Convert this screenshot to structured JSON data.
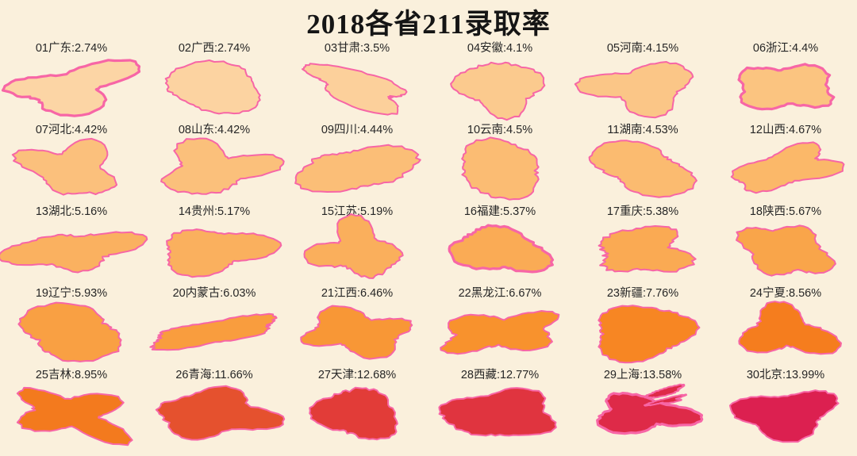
{
  "chart_data": {
    "type": "map",
    "subtype": "small-multiples-province-silhouettes",
    "title": "2018各省211录取率",
    "unit": "%",
    "grid": {
      "cols": 6,
      "rows": 5
    },
    "provinces": [
      {
        "rank": "01",
        "name": "广东",
        "rate": 2.74,
        "rate_label": "2.74%",
        "color": "#fcd5a5"
      },
      {
        "rank": "02",
        "name": "广西",
        "rate": 2.74,
        "rate_label": "2.74%",
        "color": "#fcd3a1"
      },
      {
        "rank": "03",
        "name": "甘肃",
        "rate": 3.5,
        "rate_label": "3.5%",
        "color": "#fcd09b"
      },
      {
        "rank": "04",
        "name": "安徽",
        "rate": 4.1,
        "rate_label": "4.1%",
        "color": "#fbca8e"
      },
      {
        "rank": "05",
        "name": "河南",
        "rate": 4.15,
        "rate_label": "4.15%",
        "color": "#fbc687"
      },
      {
        "rank": "06",
        "name": "浙江",
        "rate": 4.4,
        "rate_label": "4.4%",
        "color": "#fbc480"
      },
      {
        "rank": "07",
        "name": "河北",
        "rate": 4.42,
        "rate_label": "4.42%",
        "color": "#fbc07c"
      },
      {
        "rank": "08",
        "name": "山东",
        "rate": 4.42,
        "rate_label": "4.42%",
        "color": "#fbc07b"
      },
      {
        "rank": "09",
        "name": "四川",
        "rate": 4.44,
        "rate_label": "4.44%",
        "color": "#fbbe77"
      },
      {
        "rank": "10",
        "name": "云南",
        "rate": 4.5,
        "rate_label": "4.5%",
        "color": "#fbbc73"
      },
      {
        "rank": "11",
        "name": "湖南",
        "rate": 4.53,
        "rate_label": "4.53%",
        "color": "#fbbb70"
      },
      {
        "rank": "12",
        "name": "山西",
        "rate": 4.67,
        "rate_label": "4.67%",
        "color": "#fbb869"
      },
      {
        "rank": "13",
        "name": "湖北",
        "rate": 5.16,
        "rate_label": "5.16%",
        "color": "#fab160"
      },
      {
        "rank": "14",
        "name": "贵州",
        "rate": 5.17,
        "rate_label": "5.17%",
        "color": "#fab05e"
      },
      {
        "rank": "15",
        "name": "江苏",
        "rate": 5.19,
        "rate_label": "5.19%",
        "color": "#faaf5c"
      },
      {
        "rank": "16",
        "name": "福建",
        "rate": 5.37,
        "rate_label": "5.37%",
        "color": "#faab55"
      },
      {
        "rank": "17",
        "name": "重庆",
        "rate": 5.38,
        "rate_label": "5.38%",
        "color": "#faaa53"
      },
      {
        "rank": "18",
        "name": "陕西",
        "rate": 5.67,
        "rate_label": "5.67%",
        "color": "#f9a54a"
      },
      {
        "rank": "19",
        "name": "辽宁",
        "rate": 5.93,
        "rate_label": "5.93%",
        "color": "#f9a043"
      },
      {
        "rank": "20",
        "name": "内蒙古",
        "rate": 6.03,
        "rate_label": "6.03%",
        "color": "#f99d3e"
      },
      {
        "rank": "21",
        "name": "江西",
        "rate": 6.46,
        "rate_label": "6.46%",
        "color": "#f89736"
      },
      {
        "rank": "22",
        "name": "黑龙江",
        "rate": 6.67,
        "rate_label": "6.67%",
        "color": "#f8922d"
      },
      {
        "rank": "23",
        "name": "新疆",
        "rate": 7.76,
        "rate_label": "7.76%",
        "color": "#f78623"
      },
      {
        "rank": "24",
        "name": "宁夏",
        "rate": 8.56,
        "rate_label": "8.56%",
        "color": "#f57d1e"
      },
      {
        "rank": "25",
        "name": "吉林",
        "rate": 8.95,
        "rate_label": "8.95%",
        "color": "#f37a1e"
      },
      {
        "rank": "26",
        "name": "青海",
        "rate": 11.66,
        "rate_label": "11.66%",
        "color": "#e5512e"
      },
      {
        "rank": "27",
        "name": "天津",
        "rate": 12.68,
        "rate_label": "12.68%",
        "color": "#e23c38"
      },
      {
        "rank": "28",
        "name": "西藏",
        "rate": 12.77,
        "rate_label": "12.77%",
        "color": "#e0343f"
      },
      {
        "rank": "29",
        "name": "上海",
        "rate": 13.58,
        "rate_label": "13.58%",
        "color": "#de2a48"
      },
      {
        "rank": "30",
        "name": "北京",
        "rate": 13.99,
        "rate_label": "13.99%",
        "color": "#dc2050"
      }
    ]
  },
  "style": {
    "background": "#faf0dc",
    "outline": "#f766a6",
    "title_color": "#151515",
    "label_color": "#262626"
  }
}
